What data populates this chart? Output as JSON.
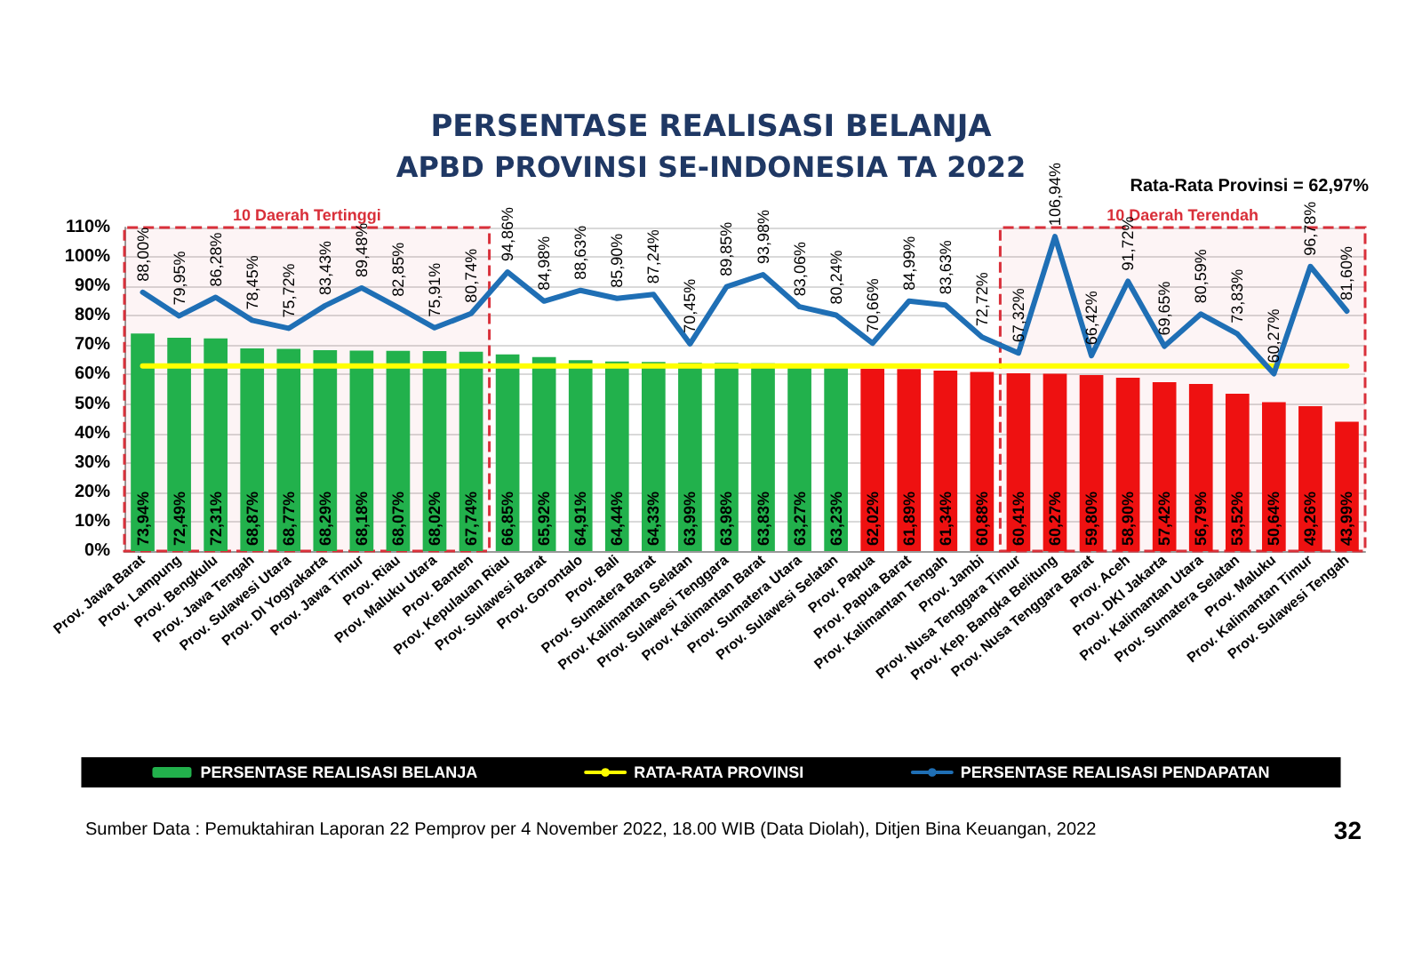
{
  "chart_data": {
    "type": "bar",
    "title": "PERSENTASE REALISASI BELANJA",
    "subtitle": "APBD PROVINSI SE-INDONESIA TA 2022",
    "categories": [
      "Prov. Jawa Barat",
      "Prov. Lampung",
      "Prov. Bengkulu",
      "Prov. Jawa Tengah",
      "Prov. Sulawesi Utara",
      "Prov. DI Yogyakarta",
      "Prov. Jawa Timur",
      "Prov. Riau",
      "Prov. Maluku Utara",
      "Prov. Banten",
      "Prov. Kepulauan Riau",
      "Prov. Sulawesi Barat",
      "Prov. Gorontalo",
      "Prov. Bali",
      "Prov. Sumatera Barat",
      "Prov. Kalimantan Selatan",
      "Prov. Sulawesi Tenggara",
      "Prov. Kalimantan Barat",
      "Prov. Sumatera Utara",
      "Prov. Sulawesi Selatan",
      "Prov. Papua",
      "Prov. Papua Barat",
      "Prov. Kalimantan Tengah",
      "Prov. Jambi",
      "Prov. Nusa Tenggara Timur",
      "Prov. Kep. Bangka Belitung",
      "Prov. Nusa Tenggara Barat",
      "Prov. Aceh",
      "Prov. DKI Jakarta",
      "Prov. Kalimantan Utara",
      "Prov. Sumatera Selatan",
      "Prov. Maluku",
      "Prov. Kalimantan Timur",
      "Prov. Sulawesi Tengah"
    ],
    "series": [
      {
        "name": "PERSENTASE REALISASI BELANJA",
        "color": "#22b14c",
        "colors": [
          "#22b14c",
          "#22b14c",
          "#22b14c",
          "#22b14c",
          "#22b14c",
          "#22b14c",
          "#22b14c",
          "#22b14c",
          "#22b14c",
          "#22b14c",
          "#22b14c",
          "#22b14c",
          "#22b14c",
          "#22b14c",
          "#22b14c",
          "#22b14c",
          "#22b14c",
          "#22b14c",
          "#22b14c",
          "#22b14c",
          "#ee1111",
          "#ee1111",
          "#ee1111",
          "#ee1111",
          "#ee1111",
          "#ee1111",
          "#ee1111",
          "#ee1111",
          "#ee1111",
          "#ee1111",
          "#ee1111",
          "#ee1111",
          "#ee1111",
          "#ee1111"
        ],
        "values": [
          73.94,
          72.49,
          72.31,
          68.87,
          68.77,
          68.29,
          68.18,
          68.07,
          68.02,
          67.74,
          66.85,
          65.92,
          64.91,
          64.44,
          64.33,
          63.99,
          63.98,
          63.83,
          63.27,
          63.23,
          62.02,
          61.89,
          61.34,
          60.88,
          60.41,
          60.27,
          59.8,
          58.9,
          57.42,
          56.79,
          53.52,
          50.64,
          49.26,
          43.99
        ],
        "value_labels": [
          "73,94%",
          "72,49%",
          "72,31%",
          "68,87%",
          "68,77%",
          "68,29%",
          "68,18%",
          "68,07%",
          "68,02%",
          "67,74%",
          "66,85%",
          "65,92%",
          "64,91%",
          "64,44%",
          "64,33%",
          "63,99%",
          "63,98%",
          "63,83%",
          "63,27%",
          "63,23%",
          "62,02%",
          "61,89%",
          "61,34%",
          "60,88%",
          "60,41%",
          "60,27%",
          "59,80%",
          "58,90%",
          "57,42%",
          "56,79%",
          "53,52%",
          "50,64%",
          "49,26%",
          "43,99%"
        ]
      },
      {
        "name": "RATA-RATA PROVINSI",
        "type": "line",
        "color": "#ffff00",
        "values": [
          62.97,
          62.97,
          62.97,
          62.97,
          62.97,
          62.97,
          62.97,
          62.97,
          62.97,
          62.97,
          62.97,
          62.97,
          62.97,
          62.97,
          62.97,
          62.97,
          62.97,
          62.97,
          62.97,
          62.97,
          62.97,
          62.97,
          62.97,
          62.97,
          62.97,
          62.97,
          62.97,
          62.97,
          62.97,
          62.97,
          62.97,
          62.97,
          62.97,
          62.97
        ]
      },
      {
        "name": "PERSENTASE REALISASI PENDAPATAN",
        "type": "line",
        "color": "#1f6fb5",
        "values": [
          88.0,
          79.95,
          86.28,
          78.45,
          75.72,
          83.43,
          89.48,
          82.85,
          75.91,
          80.74,
          94.86,
          84.98,
          88.63,
          85.9,
          87.24,
          70.45,
          89.85,
          93.98,
          83.06,
          80.24,
          70.66,
          84.99,
          83.63,
          72.72,
          67.32,
          106.94,
          66.42,
          91.72,
          69.65,
          80.59,
          73.83,
          60.27,
          96.78,
          81.6
        ],
        "value_labels": [
          "88,00%",
          "79,95%",
          "86,28%",
          "78,45%",
          "75,72%",
          "83,43%",
          "89,48%",
          "82,85%",
          "75,91%",
          "80,74%",
          "94,86%",
          "84,98%",
          "88,63%",
          "85,90%",
          "87,24%",
          "70,45%",
          "89,85%",
          "93,98%",
          "83,06%",
          "80,24%",
          "70,66%",
          "84,99%",
          "83,63%",
          "72,72%",
          "67,32%",
          "106,94%",
          "66,42%",
          "91,72%",
          "69,65%",
          "80,59%",
          "73,83%",
          "60,27%",
          "96,78%",
          "81,60%"
        ]
      }
    ],
    "ylim": [
      0,
      110
    ],
    "yticks": [
      {
        "value": 0,
        "label": "0%"
      },
      {
        "value": 10,
        "label": "10%"
      },
      {
        "value": 20,
        "label": "20%"
      },
      {
        "value": 30,
        "label": "30%"
      },
      {
        "value": 40,
        "label": "40%"
      },
      {
        "value": 50,
        "label": "50%"
      },
      {
        "value": 60,
        "label": "60%"
      },
      {
        "value": 70,
        "label": "70%"
      },
      {
        "value": 80,
        "label": "80%"
      },
      {
        "value": 90,
        "label": "90%"
      },
      {
        "value": 100,
        "label": "100%"
      },
      {
        "value": 110,
        "label": "110%"
      }
    ],
    "bands": [
      {
        "axis": "x",
        "from": "Prov. Jawa Barat",
        "to": "Prov. Banten",
        "label": "10 Daerah Tertinggi",
        "color": "#d9303a"
      },
      {
        "axis": "x",
        "from": "Prov. Nusa Tenggara Timur",
        "to": "Prov. Sulawesi Tengah",
        "label": "10 Daerah Terendah",
        "color": "#d9303a"
      }
    ],
    "annotations": [
      "Rata-Rata Provinsi = 62,97%",
      "Sumber Data : Pemuktahiran Laporan 22 Pemprov per 4 November 2022, 18.00 WIB (Data Diolah), Ditjen Bina Keuangan, 2022",
      "32"
    ],
    "grid": "y",
    "legend": "bottom",
    "marker": "none",
    "line_style": "solid"
  }
}
